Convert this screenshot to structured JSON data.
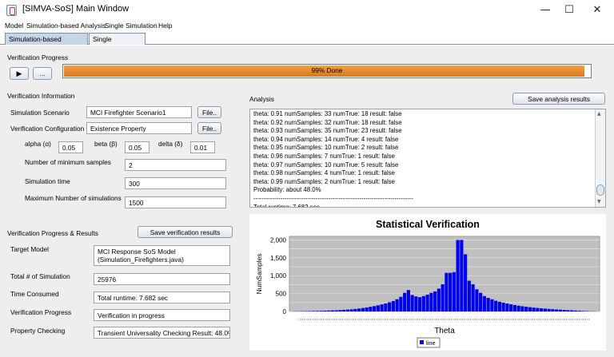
{
  "window": {
    "title": "[SIMVA-SoS] Main Window",
    "controls": {
      "minimize": "—",
      "maximize": "☐",
      "close": "✕"
    }
  },
  "menu": [
    "Model",
    "Simulation-based Analysis",
    "Single Simulation",
    "Help"
  ],
  "tabs": [
    {
      "label": "Simulation-based Analysis",
      "active": true
    },
    {
      "label": "Single Simulation",
      "active": false
    }
  ],
  "verification_progress": {
    "heading": "Verification Progress",
    "play_icon": "▶",
    "more_label": "...",
    "percent": 99,
    "progress_text": "99% Done",
    "fill_color": "#e08a2d"
  },
  "verification_info": {
    "heading": "Verification Information",
    "scenario_label": "Simulation Scenario",
    "scenario_value": "MCI Firefighter Scenario1",
    "scenario_file_btn": "File..",
    "config_label": "Verification Configuration",
    "config_value": "Existence Property",
    "config_file_btn": "File..",
    "alpha_label": "alpha (α)",
    "alpha_value": "0.05",
    "beta_label": "beta (β)",
    "beta_value": "0.05",
    "delta_label": "delta (δ)",
    "delta_value": "0.01",
    "min_samples_label": "Number of minimum samples",
    "min_samples_value": "2",
    "sim_time_label": "Simulation time",
    "sim_time_value": "300",
    "max_sims_label": "Maximum Number of simulations",
    "max_sims_value": "1500"
  },
  "results": {
    "heading": "Verification Progress & Results",
    "save_btn": "Save verification results",
    "target_model_label": "Target Model",
    "target_model_value": [
      "MCI Response SoS Model",
      "(Simulation_Firefighters.java)"
    ],
    "total_sims_label": "Total # of Simulation",
    "total_sims_value": "25976",
    "time_consumed_label": "Time Consumed",
    "time_consumed_value": "Total runtime: 7.682 sec",
    "progress_label": "Verification Progress",
    "progress_value": "Verification in progress",
    "property_label": "Property Checking",
    "property_value": "Transient Universality Checking Result: 48.0%"
  },
  "analysis": {
    "heading": "Analysis",
    "save_btn": "Save analysis results",
    "lines": [
      "theta: 0.91 numSamples: 33 numTrue: 18 result: false",
      "theta: 0.92 numSamples: 32 numTrue: 18 result: false",
      "theta: 0.93 numSamples: 35 numTrue: 23 result: false",
      "theta: 0.94 numSamples: 14 numTrue: 4 result: false",
      "theta: 0.95 numSamples: 10 numTrue: 2 result: false",
      "theta: 0.96 numSamples: 7 numTrue: 1 result: false",
      "theta: 0.97 numSamples: 10 numTrue: 5 result: false",
      "theta: 0.98 numSamples: 4 numTrue: 1 result: false",
      "theta: 0.99 numSamples: 2 numTrue: 1 result: false",
      "Probability: about 48.0%",
      "-----------------------------------------------------------------------------",
      "Total runtime: 7.682 sec"
    ]
  },
  "chart_data": {
    "type": "bar",
    "title": "Statistical Verification",
    "xlabel": "Theta",
    "ylabel": "NumSamples",
    "ylim": [
      0,
      2100
    ],
    "yticks": [
      "0",
      "250",
      "500",
      "750",
      "1,000",
      "1,250",
      "1,500",
      "1,750",
      "2,000"
    ],
    "legend": "line",
    "legend_position": "bottom",
    "bar_color": "#0000ee",
    "values": [
      4,
      6,
      8,
      10,
      12,
      14,
      16,
      18,
      22,
      26,
      30,
      34,
      40,
      46,
      52,
      60,
      70,
      82,
      96,
      112,
      130,
      150,
      172,
      196,
      224,
      256,
      292,
      340,
      410,
      520,
      600,
      460,
      420,
      400,
      430,
      470,
      520,
      560,
      640,
      760,
      1080,
      1080,
      1100,
      2000,
      2000,
      1600,
      860,
      760,
      620,
      520,
      430,
      380,
      340,
      300,
      272,
      246,
      222,
      200,
      180,
      162,
      146,
      132,
      120,
      108,
      98,
      88,
      80,
      72,
      64,
      56,
      50,
      44,
      38,
      32,
      26,
      20,
      14,
      10,
      6,
      4
    ]
  }
}
